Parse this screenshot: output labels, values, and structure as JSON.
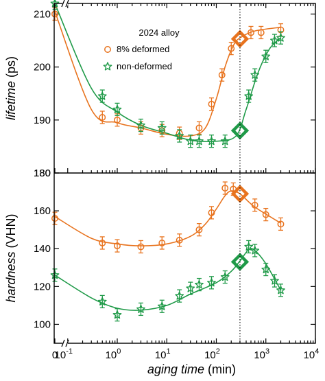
{
  "chart_data": {
    "type": "scatter",
    "x_scale": "log with break",
    "x_break_label": "0",
    "xlabel": {
      "italic": "aging time",
      "normal": " (min)"
    },
    "x_ticks": [
      {
        "value": 0.1,
        "label": "10",
        "sup": "-1"
      },
      {
        "value": 1,
        "label": "10",
        "sup": "0"
      },
      {
        "value": 10,
        "label": "10",
        "sup": "1"
      },
      {
        "value": 100,
        "label": "10",
        "sup": "2"
      },
      {
        "value": 1000,
        "label": "10",
        "sup": "3"
      },
      {
        "value": 10000,
        "label": "10",
        "sup": "4"
      }
    ],
    "xlim": [
      0.04,
      10000
    ],
    "reference_line_x": 300,
    "colors": {
      "deformed": "#e8731e",
      "non_deformed": "#1f9a48"
    },
    "panels": [
      {
        "name": "lifetime",
        "ylabel": {
          "italic": "lifetime",
          "normal": " (ps)"
        },
        "ylim": [
          180,
          212
        ],
        "y_ticks": [
          180,
          190,
          200,
          210
        ],
        "legend": {
          "title": "2024 alloy",
          "entries": [
            {
              "label": "8%  deformed",
              "marker": "circle",
              "series": "deformed"
            },
            {
              "label": "non-deformed",
              "marker": "star",
              "series": "non_deformed"
            }
          ]
        },
        "series": [
          {
            "key": "deformed",
            "marker": "circle",
            "points": [
              [
                0,
                210.0
              ],
              [
                0.5,
                190.5
              ],
              [
                1,
                190.0
              ],
              [
                3,
                188.5
              ],
              [
                8,
                188.0
              ],
              [
                18,
                187.5
              ],
              [
                45,
                188.5
              ],
              [
                80,
                193.0
              ],
              [
                130,
                198.5
              ],
              [
                200,
                203.5
              ],
              [
                500,
                206.5
              ],
              [
                800,
                206.5
              ],
              [
                2000,
                207.0
              ]
            ],
            "curve": [
              [
                0,
                210.5
              ],
              [
                0.3,
                192.0
              ],
              [
                1,
                189.5
              ],
              [
                3,
                188.5
              ],
              [
                10,
                187.3
              ],
              [
                30,
                187.0
              ],
              [
                60,
                188.5
              ],
              [
                100,
                194.0
              ],
              [
                150,
                200.0
              ],
              [
                220,
                204.0
              ],
              [
                300,
                205.5
              ],
              [
                600,
                206.8
              ],
              [
                2000,
                207.5
              ]
            ],
            "highlight": {
              "x": 300,
              "y": 205.3
            }
          },
          {
            "key": "non_deformed",
            "marker": "star",
            "points": [
              [
                0,
                212.0
              ],
              [
                0.5,
                194.5
              ],
              [
                1,
                192.0
              ],
              [
                3,
                189.0
              ],
              [
                8,
                188.5
              ],
              [
                18,
                187.0
              ],
              [
                30,
                186.0
              ],
              [
                45,
                186.0
              ],
              [
                80,
                186.0
              ],
              [
                150,
                186.0
              ],
              [
                450,
                194.5
              ],
              [
                600,
                198.5
              ],
              [
                1000,
                202.0
              ],
              [
                1500,
                205.0
              ],
              [
                2000,
                205.5
              ]
            ],
            "curve": [
              [
                0,
                212.0
              ],
              [
                0.3,
                196.0
              ],
              [
                1,
                191.5
              ],
              [
                3,
                189.0
              ],
              [
                10,
                187.5
              ],
              [
                30,
                186.2
              ],
              [
                100,
                186.0
              ],
              [
                250,
                187.0
              ],
              [
                400,
                192.0
              ],
              [
                700,
                199.0
              ],
              [
                1200,
                203.5
              ],
              [
                2000,
                205.5
              ]
            ],
            "highlight": {
              "x": 300,
              "y": 188.0
            }
          }
        ]
      },
      {
        "name": "hardness",
        "ylabel": {
          "italic": "hardness",
          "normal": " (VHN)"
        },
        "ylim": [
          90,
          180
        ],
        "y_ticks": [
          100,
          120,
          140,
          160,
          180
        ],
        "series": [
          {
            "key": "deformed",
            "marker": "circle",
            "points": [
              [
                0,
                156.0
              ],
              [
                0.5,
                143.0
              ],
              [
                1,
                141.5
              ],
              [
                3,
                141.0
              ],
              [
                8,
                143.0
              ],
              [
                18,
                144.5
              ],
              [
                45,
                150.0
              ],
              [
                80,
                159.0
              ],
              [
                150,
                172.0
              ],
              [
                220,
                171.5
              ],
              [
                600,
                163.0
              ],
              [
                1000,
                158.0
              ],
              [
                2000,
                153.0
              ]
            ],
            "curve": [
              [
                0,
                157.0
              ],
              [
                0.3,
                145.5
              ],
              [
                1,
                142.5
              ],
              [
                3,
                141.5
              ],
              [
                10,
                142.5
              ],
              [
                30,
                146.5
              ],
              [
                60,
                153.0
              ],
              [
                100,
                161.0
              ],
              [
                150,
                168.0
              ],
              [
                200,
                170.5
              ],
              [
                300,
                169.0
              ],
              [
                600,
                162.0
              ],
              [
                2000,
                153.5
              ]
            ],
            "highlight": {
              "x": 300,
              "y": 169.0
            }
          },
          {
            "key": "non_deformed",
            "marker": "star",
            "points": [
              [
                0,
                126.0
              ],
              [
                0.5,
                112.0
              ],
              [
                1,
                105.0
              ],
              [
                3,
                108.0
              ],
              [
                8,
                109.5
              ],
              [
                18,
                115.0
              ],
              [
                30,
                119.0
              ],
              [
                45,
                121.0
              ],
              [
                80,
                122.0
              ],
              [
                150,
                125.0
              ],
              [
                450,
                141.0
              ],
              [
                600,
                139.0
              ],
              [
                1000,
                129.0
              ],
              [
                1500,
                123.0
              ],
              [
                2000,
                118.0
              ]
            ],
            "curve": [
              [
                0,
                126.0
              ],
              [
                0.3,
                114.0
              ],
              [
                1,
                108.5
              ],
              [
                3,
                107.5
              ],
              [
                10,
                110.0
              ],
              [
                30,
                116.0
              ],
              [
                100,
                122.0
              ],
              [
                200,
                128.0
              ],
              [
                300,
                133.5
              ],
              [
                450,
                139.5
              ],
              [
                600,
                139.0
              ],
              [
                1000,
                132.0
              ],
              [
                2000,
                118.0
              ]
            ],
            "highlight": {
              "x": 300,
              "y": 133.0
            }
          }
        ]
      }
    ]
  }
}
